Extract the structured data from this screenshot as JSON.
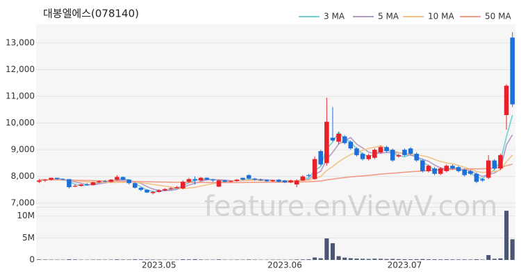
{
  "chart_data": {
    "type": "candlestick",
    "title": "대봉엘에스(078140)",
    "watermark": "feature.enViewV.com",
    "categories": [
      null,
      null,
      null,
      null,
      null,
      null,
      null,
      null,
      null,
      null,
      null,
      null,
      null,
      null,
      null,
      null,
      null,
      null,
      null,
      null,
      "2023.05",
      null,
      null,
      null,
      null,
      null,
      null,
      null,
      null,
      null,
      null,
      null,
      null,
      null,
      null,
      null,
      null,
      null,
      null,
      null,
      null,
      "2023.06",
      null,
      null,
      null,
      null,
      null,
      null,
      null,
      null,
      null,
      null,
      null,
      null,
      null,
      null,
      null,
      null,
      null,
      null,
      null,
      "2023.07",
      null,
      null,
      null,
      null,
      null,
      null,
      null,
      null,
      null,
      null,
      null,
      null,
      null,
      null,
      null,
      null,
      null,
      null
    ],
    "open": [
      7800,
      7850,
      7880,
      7950,
      7900,
      7900,
      7620,
      7650,
      7700,
      7680,
      7780,
      7820,
      7800,
      7880,
      7980,
      7880,
      7750,
      7580,
      7500,
      7380,
      7420,
      7480,
      7530,
      7560,
      7550,
      7800,
      7900,
      7850,
      7950,
      7880,
      7620,
      7850,
      7800,
      7830,
      7950,
      8050,
      7920,
      7880,
      7870,
      7820,
      7880,
      7850,
      7780,
      7700,
      7850,
      8050,
      7900,
      8950,
      8500,
      9450,
      9300,
      9500,
      9300,
      9050,
      8850,
      8650,
      8700,
      8900,
      9100,
      9000,
      8750,
      9000,
      9050,
      8850,
      8600,
      8200,
      8300,
      8100,
      8200,
      8400,
      8350,
      8250,
      8200,
      8100,
      7900,
      7950,
      8600,
      8300,
      10300,
      13200
    ],
    "high": [
      7900,
      7900,
      7950,
      7950,
      7920,
      7900,
      7700,
      7720,
      7750,
      7800,
      7850,
      7870,
      7900,
      8050,
      8000,
      7900,
      7780,
      7600,
      7520,
      7450,
      7520,
      7560,
      7600,
      7650,
      7850,
      7950,
      8000,
      7980,
      7970,
      7900,
      7880,
      7870,
      7850,
      7900,
      7950,
      8080,
      7950,
      7920,
      7900,
      7880,
      7900,
      7870,
      7880,
      7900,
      8050,
      8100,
      8750,
      9000,
      10950,
      10600,
      9650,
      9550,
      9350,
      9100,
      8900,
      8850,
      9050,
      9150,
      9150,
      9050,
      8850,
      9050,
      9100,
      8900,
      8650,
      8450,
      8350,
      8350,
      8450,
      8450,
      8400,
      8300,
      8250,
      8150,
      7950,
      8800,
      8650,
      8850,
      11450,
      13400
    ],
    "low": [
      7750,
      7800,
      7850,
      7880,
      7850,
      7550,
      7600,
      7620,
      7650,
      7670,
      7750,
      7780,
      7780,
      7850,
      7850,
      7700,
      7550,
      7450,
      7380,
      7330,
      7400,
      7450,
      7500,
      7550,
      7520,
      7750,
      7700,
      7830,
      7850,
      7800,
      7600,
      7780,
      7780,
      7800,
      7850,
      7900,
      7850,
      7830,
      7800,
      7800,
      7780,
      7750,
      7750,
      7600,
      7830,
      7980,
      7880,
      8400,
      8400,
      9300,
      9200,
      9200,
      9000,
      8750,
      8600,
      8600,
      8650,
      8850,
      8900,
      8550,
      8700,
      8750,
      8800,
      8550,
      8150,
      8150,
      8050,
      8050,
      8150,
      8250,
      8150,
      8000,
      8050,
      7750,
      7800,
      7900,
      8250,
      8250,
      9750,
      10600
    ],
    "close": [
      7850,
      7880,
      7950,
      7900,
      7880,
      7600,
      7650,
      7700,
      7680,
      7780,
      7820,
      7800,
      7880,
      7980,
      7880,
      7750,
      7580,
      7500,
      7400,
      7420,
      7480,
      7530,
      7560,
      7600,
      7800,
      7900,
      7850,
      7950,
      7880,
      7850,
      7850,
      7800,
      7830,
      7880,
      7880,
      7920,
      7880,
      7850,
      7820,
      7860,
      7800,
      7780,
      7850,
      7850,
      8000,
      8020,
      8650,
      8450,
      10050,
      9350,
      9600,
      9250,
      9050,
      8800,
      8650,
      8800,
      9000,
      9100,
      8950,
      8600,
      8800,
      8800,
      8850,
      8600,
      8200,
      8400,
      8100,
      8300,
      8400,
      8300,
      8200,
      8050,
      8100,
      7800,
      7850,
      8600,
      8300,
      8800,
      11400,
      10700
    ],
    "up_color": "#e8202a",
    "down_color": "#1e6fd9",
    "ylim": [
      6900,
      13700
    ],
    "yticks": [
      {
        "value": 7000,
        "label": "7,000"
      },
      {
        "value": 8000,
        "label": "8,000"
      },
      {
        "value": 9000,
        "label": "9,000"
      },
      {
        "value": 10000,
        "label": "10,000"
      },
      {
        "value": 11000,
        "label": "11,000"
      },
      {
        "value": 12000,
        "label": "12,000"
      },
      {
        "value": 13000,
        "label": "13,000"
      }
    ],
    "grid": true,
    "moving_averages": [
      {
        "name": "3 MA",
        "color": "#74cfcf",
        "values": [
          7850,
          7860,
          7893,
          7910,
          7910,
          7793,
          7710,
          7650,
          7677,
          7720,
          7760,
          7800,
          7833,
          7887,
          7913,
          7870,
          7737,
          7610,
          7493,
          7440,
          7433,
          7477,
          7523,
          7563,
          7653,
          7767,
          7850,
          7900,
          7893,
          7893,
          7860,
          7833,
          7827,
          7837,
          7863,
          7893,
          7893,
          7883,
          7850,
          7843,
          7827,
          7813,
          7810,
          7827,
          7900,
          7957,
          8223,
          8373,
          9050,
          9283,
          9667,
          9400,
          9300,
          9033,
          8833,
          8750,
          8817,
          8967,
          9017,
          8883,
          8783,
          8733,
          8817,
          8750,
          8550,
          8400,
          8233,
          8267,
          8267,
          8333,
          8300,
          8183,
          8117,
          7983,
          7917,
          8083,
          8250,
          8567,
          9500,
          10300
        ]
      },
      {
        "name": "5 MA",
        "color": "#b49ac6",
        "values": [
          7870,
          7870,
          7880,
          7890,
          7892,
          7842,
          7796,
          7746,
          7702,
          7682,
          7726,
          7756,
          7792,
          7852,
          7872,
          7858,
          7798,
          7738,
          7622,
          7530,
          7476,
          7466,
          7478,
          7518,
          7594,
          7678,
          7742,
          7820,
          7876,
          7886,
          7876,
          7866,
          7842,
          7842,
          7848,
          7862,
          7882,
          7886,
          7870,
          7866,
          7842,
          7822,
          7822,
          7828,
          7856,
          7900,
          8074,
          8194,
          8634,
          8904,
          9220,
          9340,
          9460,
          9210,
          9070,
          8910,
          8860,
          8870,
          8900,
          8890,
          8890,
          8850,
          8800,
          8730,
          8650,
          8570,
          8430,
          8320,
          8280,
          8300,
          8260,
          8250,
          8210,
          8090,
          8000,
          8080,
          8130,
          8270,
          9190,
          9560
        ]
      },
      {
        "name": "10 MA",
        "color": "#f3c286",
        "values": [
          7870,
          7870,
          7875,
          7880,
          7880,
          7860,
          7835,
          7815,
          7795,
          7787,
          7784,
          7776,
          7769,
          7777,
          7777,
          7792,
          7785,
          7765,
          7737,
          7701,
          7667,
          7640,
          7608,
          7570,
          7552,
          7567,
          7594,
          7639,
          7687,
          7730,
          7767,
          7794,
          7821,
          7849,
          7857,
          7859,
          7862,
          7852,
          7846,
          7847,
          7839,
          7837,
          7842,
          7839,
          7851,
          7861,
          7938,
          7998,
          8221,
          8370,
          8550,
          8697,
          8817,
          8912,
          8977,
          9055,
          9090,
          9155,
          9045,
          8970,
          8900,
          8855,
          8835,
          8815,
          8770,
          8730,
          8640,
          8560,
          8505,
          8475,
          8415,
          8340,
          8265,
          8185,
          8150,
          8170,
          8190,
          8240,
          8560,
          8800
        ]
      },
      {
        "name": "50 MA",
        "color": "#f09c86",
        "values": [
          7880,
          7878,
          7875,
          7872,
          7869,
          7865,
          7860,
          7855,
          7850,
          7845,
          7840,
          7835,
          7830,
          7826,
          7822,
          7818,
          7813,
          7808,
          7803,
          7798,
          7794,
          7790,
          7786,
          7783,
          7780,
          7778,
          7776,
          7775,
          7774,
          7773,
          7772,
          7772,
          7772,
          7773,
          7774,
          7776,
          7778,
          7780,
          7782,
          7784,
          7786,
          7788,
          7790,
          7792,
          7796,
          7800,
          7815,
          7828,
          7870,
          7898,
          7932,
          7960,
          7985,
          8005,
          8022,
          8040,
          8062,
          8085,
          8106,
          8122,
          8140,
          8158,
          8177,
          8192,
          8204,
          8218,
          8228,
          8240,
          8252,
          8262,
          8270,
          8276,
          8283,
          8284,
          8286,
          8302,
          8312,
          8330,
          8402,
          8460
        ]
      }
    ],
    "volume": {
      "color": "#4a5674",
      "ylim": [
        0,
        12000000
      ],
      "yticks": [
        {
          "value": 0,
          "label": "0"
        },
        {
          "value": 5000000,
          "label": "5M"
        },
        {
          "value": 10000000,
          "label": "10M"
        }
      ],
      "values": [
        120000,
        90000,
        80000,
        70000,
        60000,
        150000,
        110000,
        70000,
        60000,
        80000,
        90000,
        70000,
        80000,
        130000,
        90000,
        100000,
        140000,
        120000,
        110000,
        90000,
        80000,
        70000,
        60000,
        70000,
        150000,
        120000,
        160000,
        100000,
        80000,
        70000,
        130000,
        70000,
        60000,
        80000,
        70000,
        110000,
        80000,
        60000,
        60000,
        70000,
        70000,
        60000,
        70000,
        110000,
        120000,
        150000,
        550000,
        380000,
        4900000,
        3800000,
        850000,
        520000,
        380000,
        300000,
        260000,
        220000,
        280000,
        250000,
        200000,
        230000,
        180000,
        160000,
        150000,
        170000,
        200000,
        150000,
        140000,
        130000,
        140000,
        120000,
        110000,
        120000,
        100000,
        150000,
        90000,
        1100000,
        250000,
        350000,
        11200000,
        4700000
      ]
    }
  }
}
